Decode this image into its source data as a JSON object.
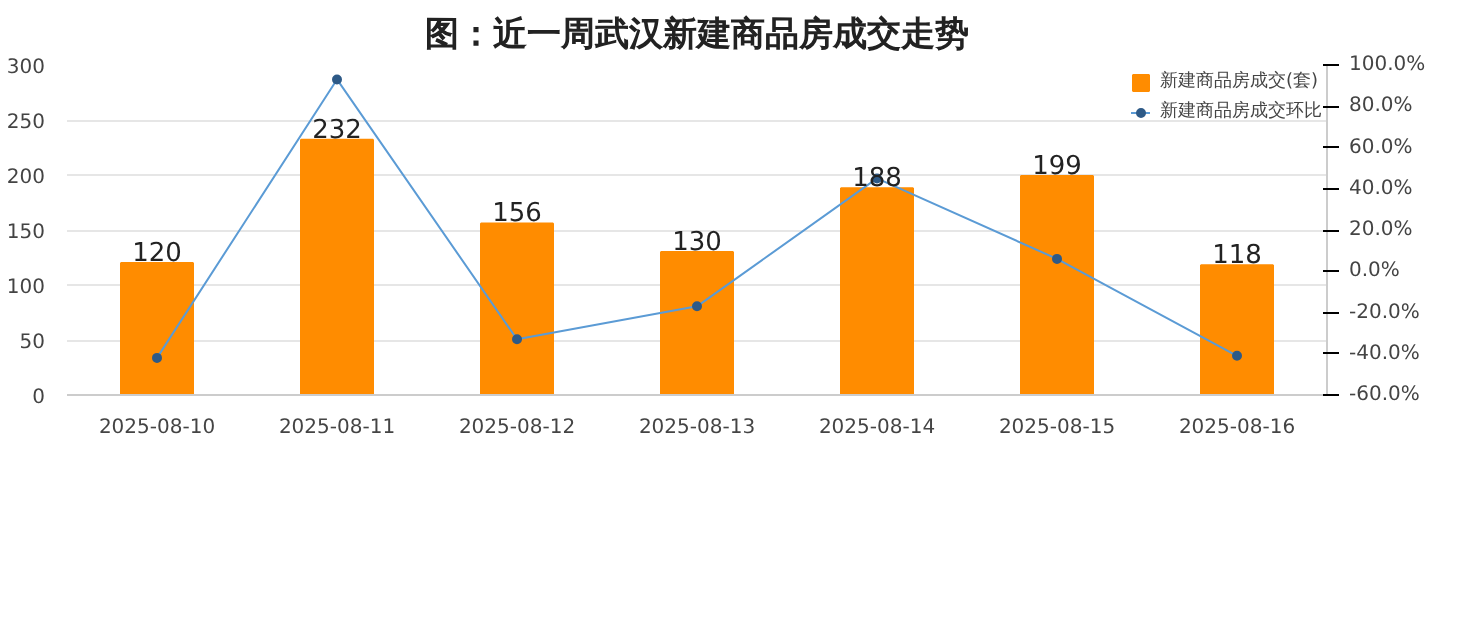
{
  "chart_data": {
    "type": "bar",
    "title": "图：近一周武汉新建商品房成交走势",
    "categories": [
      "2025-08-10",
      "2025-08-11",
      "2025-08-12",
      "2025-08-13",
      "2025-08-14",
      "2025-08-15",
      "2025-08-16"
    ],
    "series": [
      {
        "name": "新建商品房成交(套)",
        "color": "#ff8c00",
        "values": [
          120,
          232,
          156,
          130,
          188,
          199,
          118
        ],
        "value_labels": [
          "120",
          "232",
          "156",
          "130",
          "188",
          "199",
          "118"
        ]
      },
      {
        "name": "新建商品房成交环比",
        "type": "line",
        "axis": "y2",
        "color": "#5b9bd5",
        "marker": "circle",
        "values": [
          -42,
          93,
          -33,
          -17,
          45,
          6,
          -41
        ]
      }
    ],
    "ylim": [
      0,
      300
    ],
    "yticks": [
      0,
      50,
      100,
      150,
      200,
      250,
      300
    ],
    "y2lim": [
      -60,
      100
    ],
    "y2ticks": [
      {
        "value": -60,
        "label": "-60.0%"
      },
      {
        "value": -40,
        "label": "-40.0%"
      },
      {
        "value": -20,
        "label": "-20.0%"
      },
      {
        "value": 0,
        "label": "0.0%"
      },
      {
        "value": 20,
        "label": "20.0%"
      },
      {
        "value": 40,
        "label": "40.0%"
      },
      {
        "value": 60,
        "label": "60.0%"
      },
      {
        "value": 80,
        "label": "80.0%"
      },
      {
        "value": 100,
        "label": "100.0%"
      }
    ],
    "grid": "y",
    "legend": "top right"
  }
}
